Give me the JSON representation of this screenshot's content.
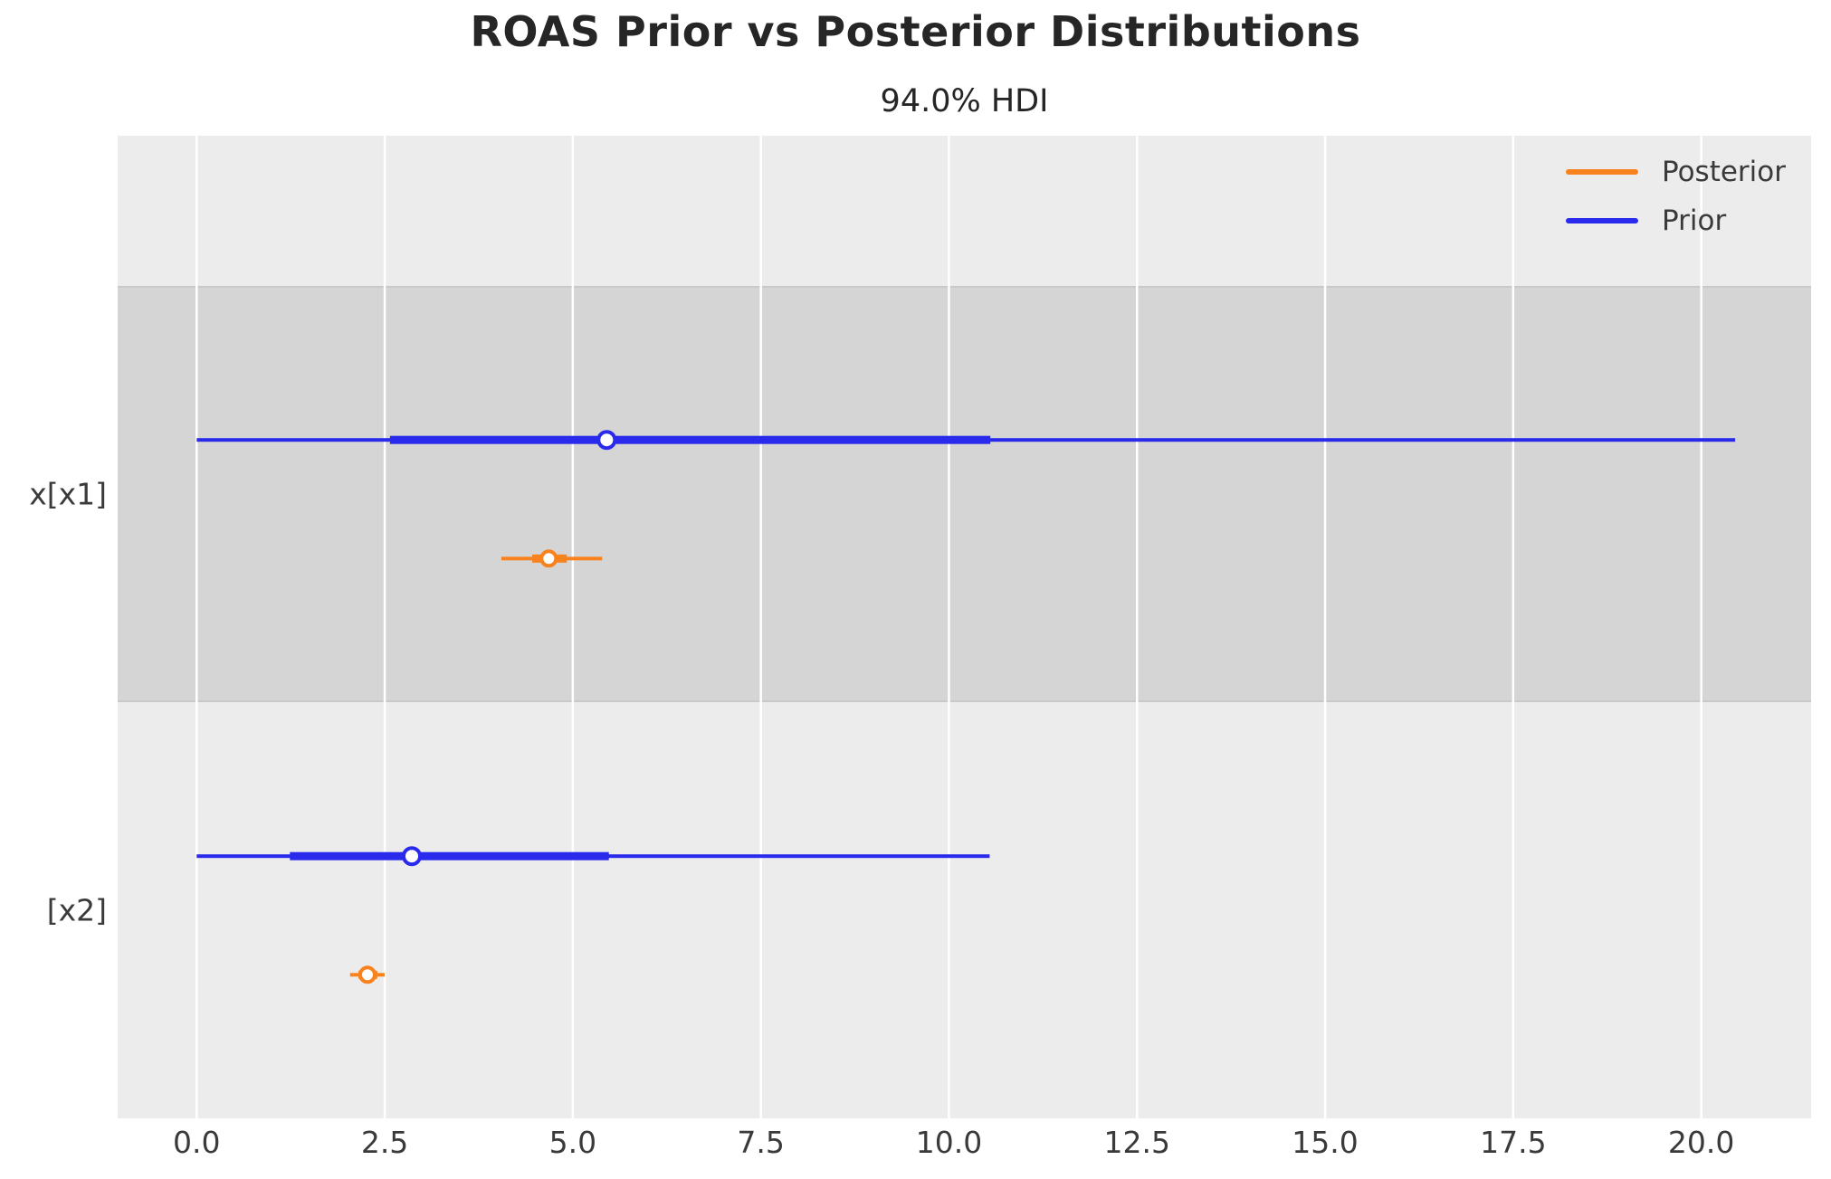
{
  "figure": {
    "title": "ROAS Prior vs Posterior Distributions",
    "subtitle": "94.0% HDI"
  },
  "chart_data": {
    "type": "forest",
    "title": "ROAS Prior vs Posterior Distributions",
    "subtitle": "94.0% HDI",
    "hdi_prob": "94.0%",
    "legend": {
      "position": "upper right",
      "entries": [
        {
          "label": "Posterior",
          "color": "#f8821e"
        },
        {
          "label": "Prior",
          "color": "#2a2aec"
        }
      ]
    },
    "x_axis": {
      "tick_labels": [
        "0.0",
        "2.5",
        "5.0",
        "7.5",
        "10.0",
        "12.5",
        "15.0",
        "17.5",
        "20.0"
      ],
      "tick_values": [
        0,
        2.5,
        5,
        7.5,
        10,
        12.5,
        15,
        17.5,
        20
      ],
      "range": [
        -1.05,
        21.46
      ],
      "grid": true
    },
    "y_axis": {
      "labels": [
        "x[x1]",
        "[x2]"
      ]
    },
    "rows": [
      {
        "label": "x[x1]",
        "series": [
          {
            "name": "Prior",
            "color": "#2a2aec",
            "hdi": [
              0.0,
              20.45
            ],
            "quartile": [
              2.57,
              10.55
            ],
            "median": 5.45
          },
          {
            "name": "Posterior",
            "color": "#f8821e",
            "hdi": [
              4.05,
              5.39
            ],
            "quartile": [
              4.46,
              4.92
            ],
            "median": 4.68
          }
        ]
      },
      {
        "label": "[x2]",
        "series": [
          {
            "name": "Prior",
            "color": "#2a2aec",
            "hdi": [
              0.0,
              10.54
            ],
            "quartile": [
              1.24,
              5.48
            ],
            "median": 2.86
          },
          {
            "name": "Posterior",
            "color": "#f8821e",
            "hdi": [
              2.04,
              2.5
            ],
            "quartile": [
              2.15,
              2.4
            ],
            "median": 2.27
          }
        ]
      }
    ],
    "styles": {
      "band_dark": "#d5d5d5",
      "band_light": "#ececec",
      "grid_color": "#ffffff",
      "text_color": "#3a3a3a",
      "title_color": "#262626",
      "plot_bg": "#ececec",
      "figure_bg": "#ffffff"
    }
  }
}
